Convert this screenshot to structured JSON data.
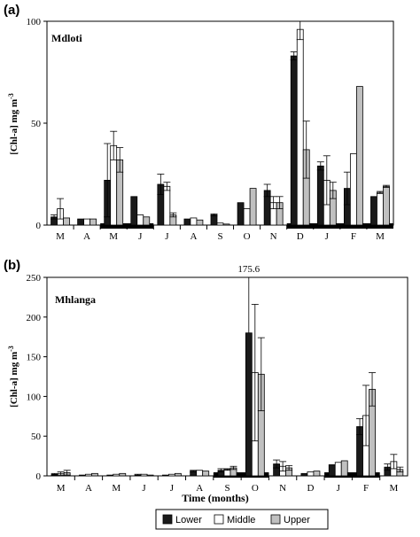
{
  "colors": {
    "lower": "#1a1a1a",
    "middle": "#ffffff",
    "upper": "#c0c0c0"
  },
  "xlabel": "Time (months)",
  "legend": [
    "Lower",
    "Middle",
    "Upper"
  ],
  "chart_data": [
    {
      "type": "bar",
      "panel_label": "(a)",
      "site": "Mdloti",
      "ylabel": "[Chl-a] mg m",
      "ylabel_sup": "-3",
      "ylim": [
        0,
        100
      ],
      "yticks": [
        "0",
        "50",
        "100"
      ],
      "categories": [
        "M",
        "A",
        "M",
        "J",
        "J",
        "A",
        "S",
        "O",
        "N",
        "D",
        "J",
        "F",
        "M"
      ],
      "series": [
        {
          "name": "Lower",
          "values": [
            4,
            3,
            22,
            14,
            20,
            3,
            5,
            11,
            17,
            83,
            29,
            18,
            14
          ],
          "errors": [
            1,
            0,
            18,
            0,
            5,
            0,
            0.5,
            0,
            3,
            2,
            2,
            8,
            0
          ]
        },
        {
          "name": "Middle",
          "values": [
            8,
            3,
            39,
            5,
            19,
            3.5,
            1,
            8,
            11,
            96,
            22,
            35,
            16
          ],
          "errors": [
            5,
            0,
            7,
            0,
            2,
            0,
            0,
            0,
            3,
            5,
            12,
            0,
            0.5
          ]
        },
        {
          "name": "Upper",
          "values": [
            3.5,
            3,
            32,
            4,
            5,
            2.5,
            0.5,
            18,
            11,
            37,
            17,
            68,
            19
          ],
          "errors": [
            0,
            0,
            6,
            0,
            1,
            0,
            0,
            0,
            3,
            14,
            4,
            0,
            0.5
          ]
        }
      ],
      "black_bars": [
        [
          2,
          4
        ],
        [
          9,
          13
        ]
      ]
    },
    {
      "type": "bar",
      "panel_label": "(b)",
      "site": "Mhlanga",
      "ylabel": "[Chl-a] mg m",
      "ylabel_sup": "-3",
      "ylim": [
        0,
        250
      ],
      "yticks": [
        "0",
        "50",
        "100",
        "150",
        "200",
        "250"
      ],
      "categories": [
        "M",
        "A",
        "M",
        "J",
        "J",
        "A",
        "S",
        "O",
        "N",
        "D",
        "J",
        "F",
        "M"
      ],
      "annotation": "175.6",
      "series": [
        {
          "name": "Lower",
          "values": [
            2,
            1,
            1,
            1,
            1,
            6,
            7,
            180,
            15,
            3,
            14,
            62,
            11
          ],
          "errors": [
            1,
            0,
            0,
            1,
            0,
            1,
            2,
            0,
            5,
            0,
            0,
            10,
            4
          ]
        },
        {
          "name": "Middle",
          "values": [
            3,
            2,
            2,
            2,
            2,
            7,
            8,
            130,
            12,
            5,
            17,
            76,
            18
          ],
          "errors": [
            2,
            0,
            0,
            0,
            0,
            0,
            1,
            86,
            6,
            0,
            0,
            38,
            9
          ]
        },
        {
          "name": "Upper",
          "values": [
            4,
            3,
            3,
            1,
            3,
            6,
            10,
            128,
            10,
            6,
            19,
            109,
            8
          ],
          "errors": [
            3,
            0,
            0,
            0,
            0,
            0,
            2,
            46,
            3,
            0,
            0,
            21,
            3
          ]
        }
      ],
      "black_bars": [
        [
          6,
          8
        ],
        [
          10,
          12
        ]
      ]
    }
  ]
}
